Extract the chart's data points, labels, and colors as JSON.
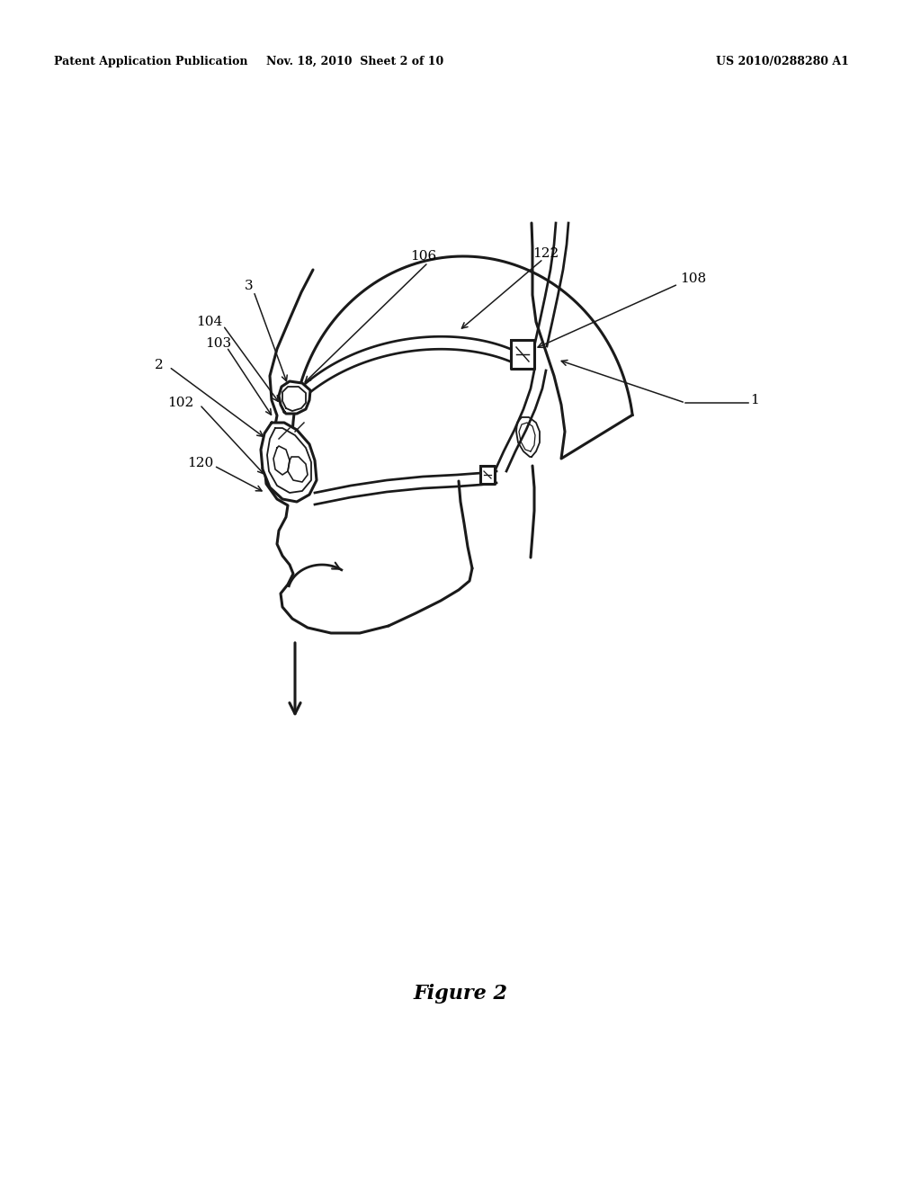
{
  "bg_color": "#ffffff",
  "header_left": "Patent Application Publication",
  "header_middle": "Nov. 18, 2010  Sheet 2 of 10",
  "header_right": "US 2010/0288280 A1",
  "figure_label": "Figure 2",
  "line_color": "#1a1a1a",
  "lw_main": 2.2,
  "lw_thin": 1.3,
  "label_fontsize": 11,
  "header_fontsize": 9,
  "figure_fontsize": 16
}
